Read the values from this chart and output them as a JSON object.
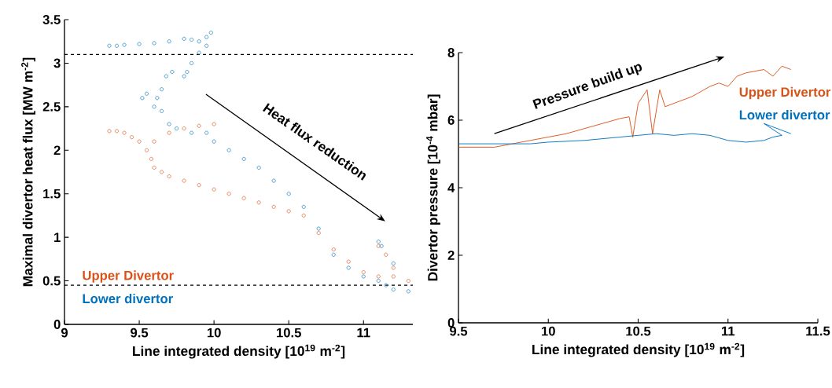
{
  "chart_data": [
    {
      "type": "scatter",
      "xlabel": "Line integrated density [10$^{19}$ m$^{-2}$]",
      "ylabel": "Maximal divertor heat flux [MW m$^{-2}$]",
      "xlim": [
        9,
        11.33
      ],
      "ylim": [
        0,
        3.5
      ],
      "xticks": [
        9,
        9.5,
        10,
        10.5,
        11
      ],
      "yticks": [
        0,
        0.5,
        1,
        1.5,
        2,
        2.5,
        3,
        3.5
      ],
      "marker": "circle",
      "legend": "bottom left",
      "annotations": [
        "Heat flux reduction"
      ],
      "ref_lines": [
        {
          "axis": "y",
          "value": 3.1,
          "color": "#000000",
          "line_style": "dashed"
        },
        {
          "axis": "y",
          "value": 0.45,
          "color": "#000000",
          "line_style": "dashed"
        }
      ],
      "series": [
        {
          "name": "Upper Divertor",
          "color": "#d95319",
          "x": [
            9.3,
            9.35,
            9.4,
            9.45,
            9.5,
            9.55,
            9.58,
            9.6,
            9.65,
            9.7,
            9.8,
            9.9,
            10.0,
            10.1,
            10.2,
            10.3,
            10.4,
            10.5,
            10.6,
            10.7,
            10.8,
            10.9,
            11.0,
            11.1,
            11.2,
            11.3,
            9.6,
            9.7,
            9.8,
            9.9,
            10.0,
            11.1,
            11.15,
            11.2
          ],
          "values": [
            2.22,
            2.22,
            2.2,
            2.15,
            2.1,
            2.0,
            1.9,
            1.8,
            1.75,
            1.7,
            1.65,
            1.6,
            1.55,
            1.5,
            1.45,
            1.4,
            1.35,
            1.3,
            1.25,
            1.05,
            0.86,
            0.72,
            0.6,
            0.55,
            0.55,
            0.5,
            2.1,
            2.2,
            2.25,
            2.28,
            2.3,
            0.9,
            0.8,
            0.65
          ]
        },
        {
          "name": "Lower divertor",
          "color": "#0072bd",
          "x": [
            9.3,
            9.35,
            9.4,
            9.5,
            9.6,
            9.7,
            9.8,
            9.85,
            9.9,
            9.95,
            9.98,
            9.95,
            9.9,
            9.85,
            9.82,
            9.8,
            9.72,
            9.68,
            9.65,
            9.62,
            9.55,
            9.52,
            9.6,
            9.65,
            9.7,
            9.75,
            9.85,
            9.95,
            10.0,
            10.1,
            10.2,
            10.3,
            10.4,
            10.5,
            10.6,
            10.7,
            10.8,
            10.9,
            11.0,
            11.1,
            11.15,
            11.2,
            11.3,
            11.1,
            11.12,
            11.2
          ],
          "values": [
            3.2,
            3.2,
            3.21,
            3.22,
            3.23,
            3.25,
            3.28,
            3.27,
            3.25,
            3.3,
            3.35,
            3.2,
            3.12,
            3.0,
            2.9,
            2.85,
            2.9,
            2.85,
            2.7,
            2.6,
            2.65,
            2.6,
            2.5,
            2.45,
            2.3,
            2.25,
            2.2,
            2.2,
            2.1,
            2.0,
            1.9,
            1.8,
            1.65,
            1.5,
            1.35,
            1.1,
            0.8,
            0.65,
            0.55,
            0.5,
            0.45,
            0.4,
            0.38,
            0.95,
            0.9,
            0.7
          ]
        }
      ]
    },
    {
      "type": "line",
      "xlabel": "Line integrated density [10$^{19}$ m$^{-2}$]",
      "ylabel": "Divertor pressure [10$^{-4}$ mbar]",
      "xlim": [
        9.5,
        11.5
      ],
      "ylim": [
        0,
        8
      ],
      "xticks": [
        9.5,
        10,
        10.5,
        11,
        11.5
      ],
      "yticks": [
        0,
        2,
        4,
        6,
        8
      ],
      "marker": "none",
      "legend": "right",
      "annotations": [
        "Pressure build up"
      ],
      "series": [
        {
          "name": "Upper Divertor",
          "color": "#d95319",
          "x": [
            9.5,
            9.6,
            9.7,
            9.8,
            9.9,
            10.0,
            10.1,
            10.2,
            10.3,
            10.4,
            10.45,
            10.47,
            10.5,
            10.55,
            10.58,
            10.62,
            10.65,
            10.7,
            10.8,
            10.9,
            10.95,
            11.0,
            11.05,
            11.1,
            11.2,
            11.25,
            11.3,
            11.35
          ],
          "values": [
            5.2,
            5.2,
            5.2,
            5.3,
            5.4,
            5.5,
            5.6,
            5.75,
            5.9,
            6.05,
            6.1,
            5.5,
            6.5,
            6.9,
            5.6,
            6.9,
            6.4,
            6.5,
            6.7,
            7.0,
            7.1,
            7.0,
            7.3,
            7.4,
            7.5,
            7.3,
            7.6,
            7.5
          ]
        },
        {
          "name": "Lower divertor",
          "color": "#0072bd",
          "x": [
            9.5,
            9.7,
            9.9,
            10.0,
            10.2,
            10.4,
            10.5,
            10.6,
            10.7,
            10.8,
            10.9,
            11.0,
            11.1,
            11.2,
            11.25,
            11.3,
            11.2,
            11.25,
            11.35
          ],
          "values": [
            5.3,
            5.3,
            5.3,
            5.35,
            5.4,
            5.5,
            5.55,
            5.6,
            5.55,
            5.6,
            5.55,
            5.4,
            5.35,
            5.4,
            5.5,
            5.55,
            5.9,
            5.8,
            5.6
          ]
        }
      ]
    }
  ]
}
